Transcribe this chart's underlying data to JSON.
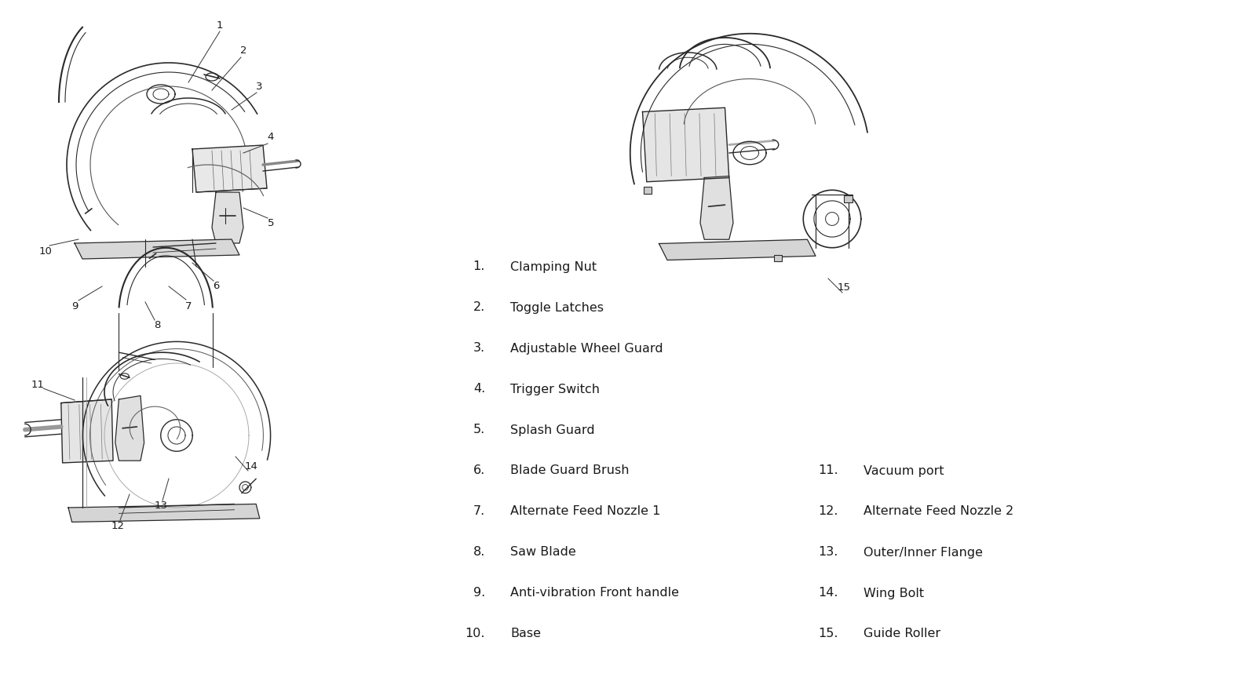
{
  "background_color": "#ffffff",
  "fig_width": 16.0,
  "fig_height": 8.68,
  "legend_col1": [
    {
      "num": "1.",
      "text": "Clamping Nut"
    },
    {
      "num": "2.",
      "text": "Toggle Latches"
    },
    {
      "num": "3.",
      "text": "Adjustable Wheel Guard"
    },
    {
      "num": "4.",
      "text": "Trigger Switch"
    },
    {
      "num": "5.",
      "text": "Splash Guard"
    },
    {
      "num": "6.",
      "text": "Blade Guard Brush"
    },
    {
      "num": "7.",
      "text": "Alternate Feed Nozzle 1"
    },
    {
      "num": "8.",
      "text": "Saw Blade"
    },
    {
      "num": "9.",
      "text": "Anti-vibration Front handle"
    },
    {
      "num": "10.",
      "text": "Base"
    }
  ],
  "legend_col2": [
    {
      "num": "11.",
      "text": "Vacuum port"
    },
    {
      "num": "12.",
      "text": "Alternate Feed Nozzle 2"
    },
    {
      "num": "13.",
      "text": "Outer/Inner Flange"
    },
    {
      "num": "14.",
      "text": "Wing Bolt"
    },
    {
      "num": "15.",
      "text": "Guide Roller"
    }
  ],
  "text_color": "#1a1a1a",
  "legend_fontsize": 11.5,
  "callout_fontsize": 9.5,
  "line_color": "#2a2a2a"
}
